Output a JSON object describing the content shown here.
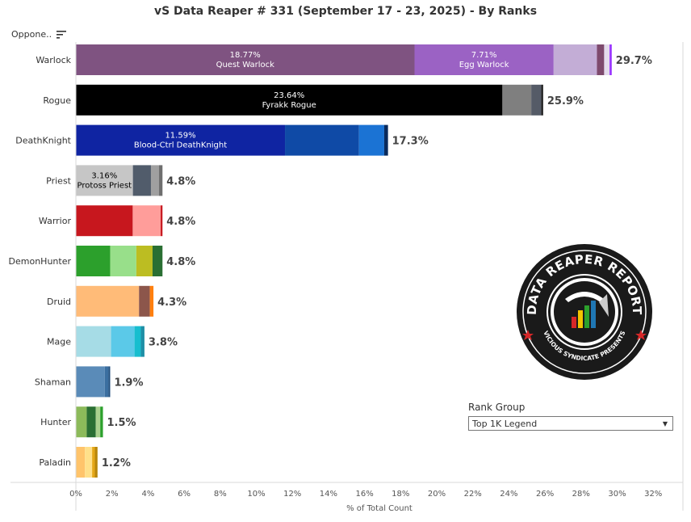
{
  "title": "vS Data Reaper #  331 (September 17 - 23, 2025) - By Ranks",
  "opponent_header": "Oppone..",
  "sort_icon": "sort-descending-icon",
  "rank_group": {
    "label": "Rank Group",
    "selected": "Top 1K Legend"
  },
  "chart_data": {
    "type": "bar",
    "orientation": "horizontal",
    "stacked": true,
    "xlabel": "% of Total Count",
    "xlim": [
      0,
      32
    ],
    "x_ticks": [
      "0%",
      "2%",
      "4%",
      "6%",
      "8%",
      "10%",
      "12%",
      "14%",
      "16%",
      "18%",
      "20%",
      "22%",
      "24%",
      "26%",
      "28%",
      "30%",
      "32%"
    ],
    "x_tick_values": [
      0,
      2,
      4,
      6,
      8,
      10,
      12,
      14,
      16,
      18,
      20,
      22,
      24,
      26,
      28,
      30,
      32
    ],
    "grid": false,
    "categories": [
      {
        "name": "Warlock",
        "total_label": "29.7%",
        "total": 29.7,
        "segments": [
          {
            "value": 18.77,
            "color": "#7f5381",
            "label_pct": "18.77%",
            "label_name": "Quest Warlock",
            "text_color": "#ffffff"
          },
          {
            "value": 7.71,
            "color": "#9b62c4",
            "label_pct": "7.71%",
            "label_name": "Egg Warlock",
            "text_color": "#ffffff"
          },
          {
            "value": 2.4,
            "color": "#c3add6"
          },
          {
            "value": 0.4,
            "color": "#7e4a6d"
          },
          {
            "value": 0.3,
            "color": "#e4dbec"
          },
          {
            "value": 0.12,
            "color": "#9933ff"
          }
        ]
      },
      {
        "name": "Rogue",
        "total_label": "25.9%",
        "total": 25.9,
        "segments": [
          {
            "value": 23.64,
            "color": "#000000",
            "label_pct": "23.64%",
            "label_name": "Fyrakk Rogue",
            "text_color": "#ffffff"
          },
          {
            "value": 1.6,
            "color": "#7f7f7f"
          },
          {
            "value": 0.55,
            "color": "#555b67"
          },
          {
            "value": 0.11,
            "color": "#222222"
          }
        ]
      },
      {
        "name": "DeathKnight",
        "total_label": "17.3%",
        "total": 17.3,
        "segments": [
          {
            "value": 11.59,
            "color": "#0f24a2",
            "label_pct": "11.59%",
            "label_name": "Blood-Ctrl DeathKnight",
            "text_color": "#ffffff"
          },
          {
            "value": 4.1,
            "color": "#0f4aa6"
          },
          {
            "value": 1.4,
            "color": "#1b73d4"
          },
          {
            "value": 0.21,
            "color": "#0a2a5c"
          }
        ]
      },
      {
        "name": "Priest",
        "total_label": "4.8%",
        "total": 4.8,
        "segments": [
          {
            "value": 3.16,
            "color": "#c6c6c6",
            "label_pct": "3.16%",
            "label_name": "Protoss Priest",
            "text_color": "#000000"
          },
          {
            "value": 1.0,
            "color": "#515c6b"
          },
          {
            "value": 0.45,
            "color": "#a0a0a0"
          },
          {
            "value": 0.19,
            "color": "#6e6e6e"
          }
        ]
      },
      {
        "name": "Warrior",
        "total_label": "4.8%",
        "total": 4.8,
        "segments": [
          {
            "value": 3.15,
            "color": "#c7171e"
          },
          {
            "value": 1.55,
            "color": "#ff9d9a"
          },
          {
            "value": 0.1,
            "color": "#c7171e"
          }
        ]
      },
      {
        "name": "DemonHunter",
        "total_label": "4.8%",
        "total": 4.8,
        "segments": [
          {
            "value": 1.9,
            "color": "#2ca02c"
          },
          {
            "value": 1.45,
            "color": "#98df8a"
          },
          {
            "value": 0.9,
            "color": "#bcbd22"
          },
          {
            "value": 0.55,
            "color": "#2a6f33"
          }
        ]
      },
      {
        "name": "Druid",
        "total_label": "4.3%",
        "total": 4.3,
        "segments": [
          {
            "value": 3.5,
            "color": "#ffbb78"
          },
          {
            "value": 0.6,
            "color": "#8c564b"
          },
          {
            "value": 0.2,
            "color": "#ff7f0e"
          }
        ]
      },
      {
        "name": "Mage",
        "total_label": "3.8%",
        "total": 3.8,
        "segments": [
          {
            "value": 1.95,
            "color": "#a6dce6"
          },
          {
            "value": 1.3,
            "color": "#5bc9e8"
          },
          {
            "value": 0.35,
            "color": "#17becf"
          },
          {
            "value": 0.2,
            "color": "#1f8fa6"
          }
        ]
      },
      {
        "name": "Shaman",
        "total_label": "1.9%",
        "total": 1.9,
        "segments": [
          {
            "value": 1.6,
            "color": "#5a8bb8"
          },
          {
            "value": 0.2,
            "color": "#3b6fa0"
          },
          {
            "value": 0.1,
            "color": "#1f4f7f"
          }
        ]
      },
      {
        "name": "Hunter",
        "total_label": "1.5%",
        "total": 1.5,
        "segments": [
          {
            "value": 0.6,
            "color": "#8cba5a"
          },
          {
            "value": 0.5,
            "color": "#2a6f33"
          },
          {
            "value": 0.25,
            "color": "#a9d18e"
          },
          {
            "value": 0.15,
            "color": "#2ca02c"
          }
        ]
      },
      {
        "name": "Paladin",
        "total_label": "1.2%",
        "total": 1.2,
        "segments": [
          {
            "value": 0.5,
            "color": "#ffc46b"
          },
          {
            "value": 0.4,
            "color": "#ffe08a"
          },
          {
            "value": 0.15,
            "color": "#e6a817"
          },
          {
            "value": 0.15,
            "color": "#b8860b"
          }
        ]
      }
    ]
  },
  "logo": {
    "text_top": "DATA REAPER REPORT",
    "text_bottom": "VICIOUS SYNDICATE PRESENTS"
  }
}
